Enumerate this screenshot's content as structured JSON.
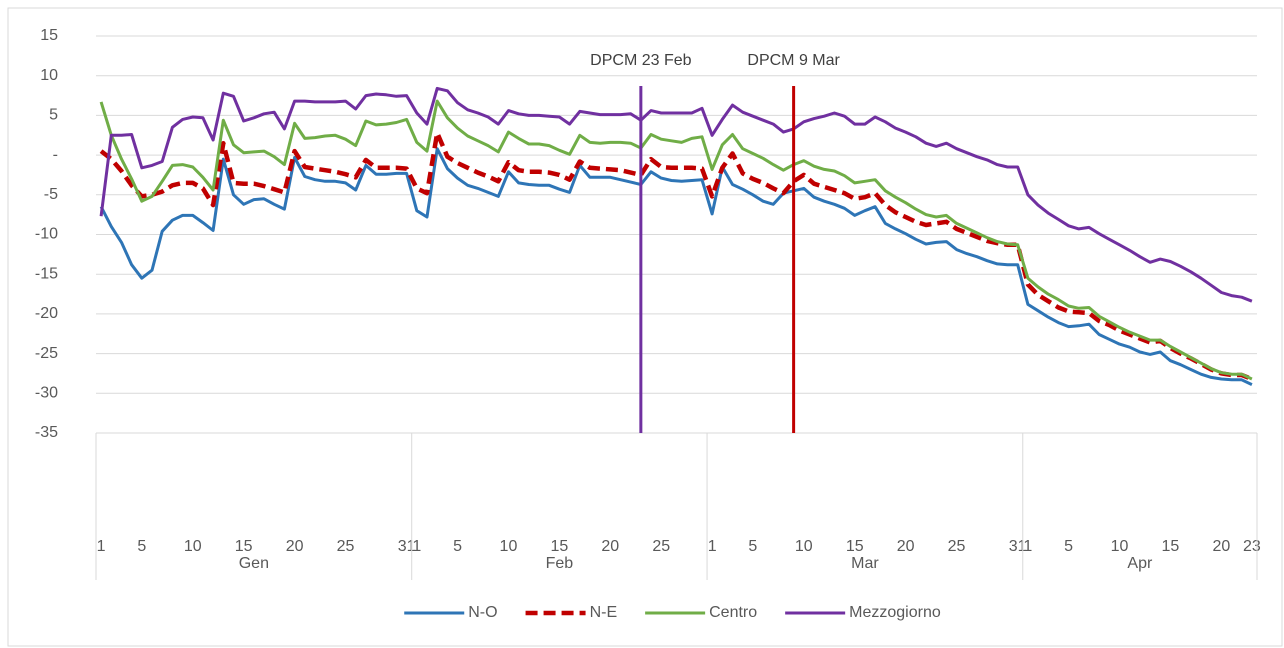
{
  "chart_data": {
    "type": "line",
    "groups": [
      {
        "label": "Gen",
        "categories": [
          "1",
          null,
          null,
          null,
          "5",
          null,
          null,
          null,
          null,
          "10",
          null,
          null,
          null,
          null,
          "15",
          null,
          null,
          null,
          null,
          "20",
          null,
          null,
          null,
          null,
          "25",
          null,
          null,
          null,
          null,
          null,
          "31"
        ]
      },
      {
        "label": "Feb",
        "categories": [
          "1",
          null,
          null,
          null,
          "5",
          null,
          null,
          null,
          null,
          "10",
          null,
          null,
          null,
          null,
          "15",
          null,
          null,
          null,
          null,
          "20",
          null,
          null,
          null,
          null,
          "25",
          null,
          null,
          null,
          null
        ]
      },
      {
        "label": "Mar",
        "categories": [
          "1",
          null,
          null,
          null,
          "5",
          null,
          null,
          null,
          null,
          "10",
          null,
          null,
          null,
          null,
          "15",
          null,
          null,
          null,
          null,
          "20",
          null,
          null,
          null,
          null,
          "25",
          null,
          null,
          null,
          null,
          null,
          "31"
        ]
      },
      {
        "label": "Apr",
        "categories": [
          "1",
          null,
          null,
          null,
          "5",
          null,
          null,
          null,
          null,
          "10",
          null,
          null,
          null,
          null,
          "15",
          null,
          null,
          null,
          null,
          "20",
          null,
          null,
          "23"
        ]
      }
    ],
    "series": [
      {
        "name": "N-O",
        "color": "#2e75b6",
        "dash": false,
        "values": [
          -6.5,
          -9,
          -11,
          -13.8,
          -15.5,
          -14.5,
          -9.6,
          -8.2,
          -7.6,
          -7.6,
          -8.5,
          -9.5,
          -0.5,
          -5,
          -6.2,
          -5.6,
          -5.5,
          -6.2,
          -6.8,
          -0.3,
          -2.7,
          -3.1,
          -3.3,
          -3.3,
          -3.5,
          -4.4,
          -1.3,
          -2.4,
          -2.4,
          -2.3,
          -2.3,
          -7,
          -7.8,
          0.8,
          -1.7,
          -2.9,
          -3.8,
          -4.2,
          -4.7,
          -5.2,
          -2.1,
          -3.5,
          -3.7,
          -3.8,
          -3.8,
          -4.3,
          -4.7,
          -1.3,
          -2.8,
          -2.8,
          -2.8,
          -3.1,
          -3.4,
          -3.7,
          -2.1,
          -2.9,
          -3.2,
          -3.3,
          -3.2,
          -3.1,
          -7.4,
          -1.5,
          -3.7,
          -4.3,
          -5,
          -5.8,
          -6.2,
          -4.8,
          -4.5,
          -4.2,
          -5.3,
          -5.8,
          -6.2,
          -6.7,
          -7.6,
          -7,
          -6.5,
          -8.6,
          -9.3,
          -9.9,
          -10.6,
          -11.2,
          -11,
          -10.9,
          -11.9,
          -12.4,
          -12.8,
          -13.3,
          -13.7,
          -13.8,
          -13.8,
          -18.8,
          -19.6,
          -20.4,
          -21.1,
          -21.6,
          -21.5,
          -21.3,
          -22.6,
          -23.2,
          -23.8,
          -24.2,
          -24.8,
          -25.1,
          -24.8,
          -25.9,
          -26.4,
          -27,
          -27.6,
          -28,
          -28.2,
          -28.3,
          -28.3,
          -28.9
        ]
      },
      {
        "name": "N-E",
        "color": "#c00000",
        "dash": true,
        "values": [
          0.5,
          -0.5,
          -2,
          -3.8,
          -5.2,
          -5,
          -4.6,
          -3.8,
          -3.5,
          -3.5,
          -4.2,
          -6.3,
          1.5,
          -3.5,
          -3.6,
          -3.6,
          -3.9,
          -4.3,
          -4.7,
          0.5,
          -1.5,
          -1.7,
          -1.9,
          -2.1,
          -2.4,
          -2.8,
          -0.6,
          -1.6,
          -1.6,
          -1.6,
          -1.7,
          -4.2,
          -4.8,
          2.8,
          -0.2,
          -1,
          -1.6,
          -2.2,
          -2.7,
          -3.3,
          -0.9,
          -1.9,
          -2.1,
          -2.1,
          -2.2,
          -2.5,
          -3.1,
          -0.8,
          -1.6,
          -1.7,
          -1.8,
          -1.9,
          -2.2,
          -2.5,
          -0.5,
          -1.5,
          -1.6,
          -1.6,
          -1.6,
          -1.7,
          -5.2,
          -1.6,
          0.2,
          -2.3,
          -3,
          -3.5,
          -4.2,
          -4.8,
          -3.3,
          -2.5,
          -3.6,
          -4,
          -4.4,
          -4.8,
          -5.5,
          -5.3,
          -4.8,
          -6.3,
          -7.2,
          -7.8,
          -8.4,
          -8.8,
          -8.6,
          -8.4,
          -9.3,
          -9.8,
          -10.3,
          -10.8,
          -11.1,
          -11.3,
          -11.3,
          -16.3,
          -17.6,
          -18.4,
          -19.2,
          -19.7,
          -19.8,
          -19.9,
          -20.9,
          -21.4,
          -22.1,
          -22.6,
          -23.1,
          -23.6,
          -23.4,
          -24.3,
          -25,
          -25.6,
          -26.3,
          -27,
          -27.5,
          -27.7,
          -27.7,
          -28.2
        ]
      },
      {
        "name": "Centro",
        "color": "#70ad47",
        "dash": false,
        "values": [
          6.7,
          2.5,
          -0.5,
          -3,
          -5.8,
          -5.2,
          -3.3,
          -1.3,
          -1.2,
          -1.5,
          -2.8,
          -4.4,
          4.4,
          1.3,
          0.3,
          0.4,
          0.5,
          -0.2,
          -1.2,
          4,
          2.1,
          2.2,
          2.4,
          2.5,
          2,
          1.2,
          4.3,
          3.8,
          3.9,
          4.1,
          4.5,
          1.6,
          0.5,
          6.8,
          4.7,
          3.4,
          2.4,
          1.8,
          1.2,
          0.4,
          2.9,
          2.1,
          1.4,
          1.4,
          1.2,
          0.6,
          0.1,
          2.5,
          1.6,
          1.5,
          1.6,
          1.6,
          1.5,
          0.9,
          2.6,
          2,
          1.8,
          1.6,
          2.1,
          2.3,
          -1.8,
          1.3,
          2.6,
          0.8,
          0.2,
          -0.4,
          -1.2,
          -1.9,
          -1.2,
          -0.7,
          -1.4,
          -1.8,
          -2,
          -2.6,
          -3.5,
          -3.3,
          -3.1,
          -4.5,
          -5.3,
          -6,
          -6.8,
          -7.5,
          -7.8,
          -7.6,
          -8.6,
          -9.2,
          -9.8,
          -10.4,
          -10.9,
          -11.2,
          -11.3,
          -15.5,
          -16.6,
          -17.5,
          -18.2,
          -19,
          -19.3,
          -19.2,
          -20.3,
          -21,
          -21.7,
          -22.3,
          -22.8,
          -23.3,
          -23.3,
          -24.1,
          -24.8,
          -25.5,
          -26.2,
          -26.9,
          -27.4,
          -27.6,
          -27.6,
          -28.2
        ]
      },
      {
        "name": "Mezzogiorno",
        "color": "#7030a0",
        "dash": false,
        "values": [
          -7.7,
          2.5,
          2.5,
          2.6,
          -1.6,
          -1.3,
          -0.8,
          3.5,
          4.5,
          4.8,
          4.7,
          1.9,
          7.8,
          7.4,
          4.3,
          4.7,
          5.2,
          5.4,
          3.3,
          6.8,
          6.8,
          6.7,
          6.7,
          6.7,
          6.8,
          5.8,
          7.5,
          7.7,
          7.6,
          7.4,
          7.5,
          5.3,
          3.9,
          8.4,
          8.1,
          6.6,
          5.7,
          5.3,
          4.8,
          3.9,
          5.6,
          5.2,
          5,
          5,
          4.9,
          4.8,
          3.9,
          5.5,
          5.3,
          5.1,
          5.1,
          5.1,
          5.2,
          4.4,
          5.6,
          5.3,
          5.3,
          5.3,
          5.3,
          5.9,
          2.5,
          4.5,
          6.3,
          5.4,
          4.9,
          4.4,
          3.9,
          2.9,
          3.3,
          4.2,
          4.6,
          4.9,
          5.3,
          4.9,
          3.9,
          3.9,
          4.8,
          4.2,
          3.4,
          2.9,
          2.3,
          1.5,
          1.1,
          1.5,
          0.8,
          0.3,
          -0.2,
          -0.6,
          -1.2,
          -1.5,
          -1.5,
          -5,
          -6.3,
          -7.3,
          -8.1,
          -8.9,
          -9.3,
          -9.1,
          -9.9,
          -10.6,
          -11.3,
          -12,
          -12.8,
          -13.5,
          -13.1,
          -13.4,
          -14,
          -14.7,
          -15.5,
          -16.4,
          -17.3,
          -17.7,
          -17.9,
          -18.4
        ]
      }
    ],
    "vlines": [
      {
        "label": "DPCM 23 Feb",
        "x": 53,
        "color": "#7030a0"
      },
      {
        "label": "DPCM 9 Mar",
        "x": 68,
        "color": "#c00000"
      }
    ],
    "ylim": [
      -35,
      15
    ],
    "yticks": [
      15,
      10,
      5,
      {
        "value": 0,
        "label": "-"
      },
      -5,
      -10,
      -15,
      -20,
      -25,
      -30,
      -35
    ],
    "grid": true,
    "legend": "bottom"
  }
}
